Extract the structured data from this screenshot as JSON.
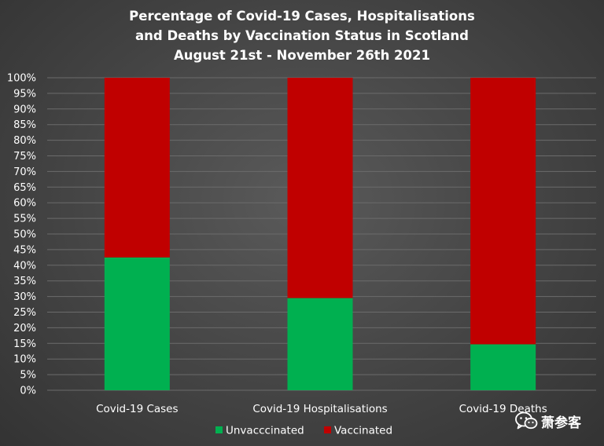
{
  "chart_data": {
    "type": "bar",
    "stacked": true,
    "percent": true,
    "title": [
      "Percentage of Covid-19 Cases, Hospitalisations",
      "and Deaths by Vaccination Status in Scotland",
      "August 21st - November 26th 2021"
    ],
    "categories": [
      "Covid-19 Cases",
      "Covid-19 Hospitalisations",
      "Covid-19 Deaths"
    ],
    "series": [
      {
        "name": "Unvacccinated",
        "color": "#00b050",
        "values": [
          42.5,
          29.5,
          14.7
        ]
      },
      {
        "name": "Vaccinated",
        "color": "#c00000",
        "values": [
          57.5,
          70.5,
          85.3
        ]
      }
    ],
    "ylim": [
      0,
      100
    ],
    "ytick_labels": [
      "0%",
      "5%",
      "10%",
      "15%",
      "20%",
      "25%",
      "30%",
      "35%",
      "40%",
      "45%",
      "50%",
      "55%",
      "60%",
      "65%",
      "70%",
      "75%",
      "80%",
      "85%",
      "90%",
      "95%",
      "100%"
    ],
    "grid": true,
    "legend_position": "bottom",
    "gridline_color": "#6b6b6b",
    "background_color": "#4a4a4a"
  },
  "watermark": {
    "text": "萧参客",
    "icon": "wechat-icon"
  }
}
